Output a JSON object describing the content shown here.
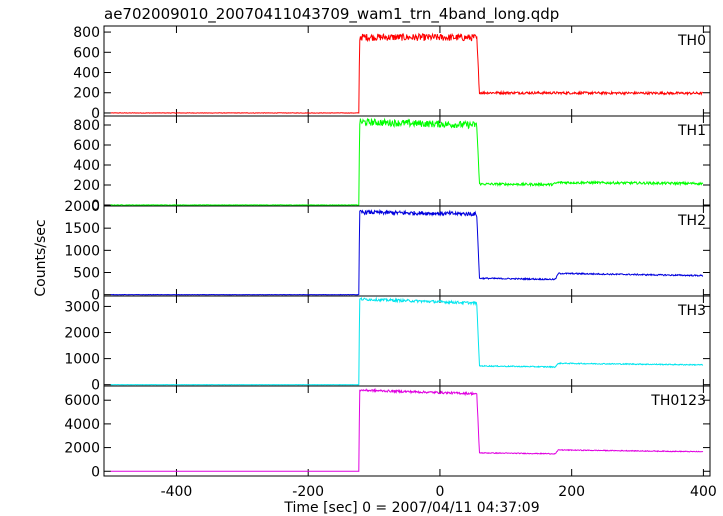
{
  "chart_data": {
    "type": "line",
    "title": "ae702009010_20070411043709_wam1_trn_4band_long.qdp",
    "xlabel": "Time [sec] 0 = 2007/04/11 04:37:09",
    "ylabel": "Counts/sec",
    "xlim": [
      -510,
      410
    ],
    "x_ticks": [
      -400,
      -200,
      0,
      200,
      400
    ],
    "grid": false,
    "shared_x": true,
    "panels": [
      {
        "name": "TH0",
        "color": "#ff0000",
        "ylim": [
          -30,
          860
        ],
        "y_ticks": [
          0,
          200,
          400,
          600,
          800
        ],
        "x": [
          -500,
          -123,
          -122,
          55,
          56,
          60,
          400
        ],
        "values": [
          0,
          0,
          750,
          745,
          730,
          200,
          195
        ],
        "noise": [
          2,
          2,
          35,
          35,
          35,
          12,
          12
        ]
      },
      {
        "name": "TH1",
        "color": "#00ff00",
        "ylim": [
          -10,
          890
        ],
        "y_ticks": [
          0,
          200,
          400,
          600,
          800
        ],
        "x": [
          -500,
          -123,
          -122,
          55,
          56,
          60,
          170,
          180,
          400
        ],
        "values": [
          0,
          0,
          830,
          800,
          790,
          210,
          205,
          225,
          215
        ],
        "noise": [
          2,
          2,
          35,
          35,
          35,
          12,
          12,
          12,
          12
        ]
      },
      {
        "name": "TH2",
        "color": "#0000dd",
        "ylim": [
          -30,
          2000
        ],
        "y_ticks": [
          0,
          500,
          1000,
          1500,
          2000
        ],
        "x": [
          -500,
          -123,
          -122,
          55,
          56,
          60,
          175,
          180,
          400
        ],
        "values": [
          0,
          0,
          1860,
          1820,
          1790,
          370,
          345,
          480,
          430
        ],
        "noise": [
          3,
          3,
          45,
          45,
          45,
          15,
          15,
          15,
          15
        ]
      },
      {
        "name": "TH3",
        "color": "#00e5ee",
        "ylim": [
          -50,
          3400
        ],
        "y_ticks": [
          0,
          1000,
          2000,
          3000
        ],
        "x": [
          -500,
          -123,
          -122,
          55,
          56,
          60,
          175,
          180,
          400
        ],
        "values": [
          0,
          0,
          3280,
          3130,
          3080,
          720,
          680,
          820,
          760
        ],
        "noise": [
          4,
          4,
          50,
          50,
          50,
          20,
          20,
          20,
          20
        ]
      },
      {
        "name": "TH0123",
        "color": "#e000e0",
        "ylim": [
          -400,
          7200
        ],
        "y_ticks": [
          0,
          2000,
          4000,
          6000
        ],
        "x": [
          -500,
          -123,
          -122,
          55,
          56,
          60,
          175,
          180,
          400
        ],
        "values": [
          0,
          0,
          6850,
          6550,
          6450,
          1550,
          1480,
          1800,
          1650
        ],
        "noise": [
          6,
          6,
          90,
          90,
          90,
          35,
          35,
          35,
          35
        ]
      }
    ]
  }
}
